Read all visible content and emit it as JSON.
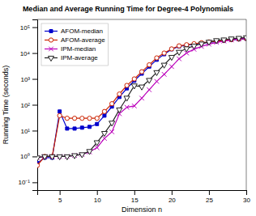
{
  "chart_data": {
    "type": "line",
    "title": "Median and Average Running Time for Degree-4 Polynomials",
    "x_label": "Dimension n",
    "y_label": "Running Time (seconds)",
    "x": [
      2,
      3,
      4,
      5,
      6,
      7,
      8,
      9,
      10,
      11,
      12,
      13,
      14,
      15,
      16,
      17,
      18,
      19,
      20,
      21,
      22,
      23,
      24,
      25,
      26,
      27,
      28,
      29,
      30
    ],
    "series": [
      {
        "name": "AFOM-median",
        "color": "#0000cc",
        "marker": "square",
        "values": [
          0.55,
          0.9,
          0.9,
          55,
          12,
          12,
          13,
          14,
          18,
          38,
          85,
          200,
          430,
          850,
          1600,
          3000,
          5500,
          9000,
          14000,
          18000,
          20000,
          22000,
          24000,
          26000,
          28000,
          30000,
          32000,
          34000,
          36000
        ]
      },
      {
        "name": "AFOM-average",
        "color": "#cc2200",
        "marker": "circle-open",
        "values": [
          0.45,
          1.0,
          1.0,
          38,
          30,
          30,
          30,
          30,
          30,
          55,
          110,
          260,
          560,
          1000,
          1900,
          3500,
          6500,
          10000,
          14500,
          19000,
          21000,
          23000,
          25000,
          27000,
          29000,
          31000,
          33000,
          35000,
          37000
        ]
      },
      {
        "name": "IPM-median",
        "color": "#bb00bb",
        "marker": "x",
        "values": [
          0.9,
          1.0,
          1.0,
          1.0,
          1.0,
          1.1,
          1.2,
          1.5,
          2.2,
          5.0,
          9,
          45,
          80,
          90,
          180,
          380,
          800,
          1500,
          3000,
          6000,
          10000,
          14000,
          18000,
          22000,
          26000,
          29000,
          32000,
          35000,
          38000
        ]
      },
      {
        "name": "IPM-average",
        "color": "#222222",
        "marker": "triangle-down-open",
        "values": [
          0.9,
          1.0,
          1.0,
          1.0,
          1.0,
          1.1,
          1.2,
          1.6,
          3.5,
          8,
          20,
          65,
          185,
          550,
          500,
          900,
          1800,
          3500,
          7000,
          11000,
          15000,
          19000,
          23000,
          27000,
          31000,
          33000,
          36000,
          38000,
          40000
        ]
      }
    ],
    "xlim": [
      2,
      30
    ],
    "xticks": [
      5,
      10,
      15,
      20,
      25,
      30
    ],
    "ylim": [
      0.05,
      200000
    ],
    "yticks": [
      {
        "value": 0.1,
        "label": "10⁻¹"
      },
      {
        "value": 1,
        "label": "10⁰"
      },
      {
        "value": 10,
        "label": "10¹"
      },
      {
        "value": 100,
        "label": "10²"
      },
      {
        "value": 1000,
        "label": "10³"
      },
      {
        "value": 10000,
        "label": "10⁴"
      },
      {
        "value": 100000,
        "label": "10⁵"
      }
    ],
    "log": "y",
    "grid": false,
    "legend": "upper left"
  }
}
